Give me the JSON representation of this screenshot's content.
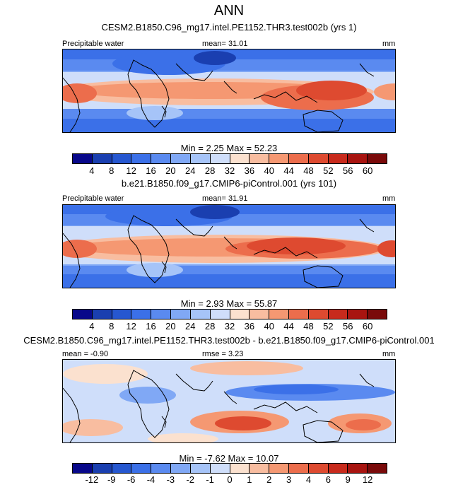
{
  "figure": {
    "title": "ANN"
  },
  "panels": [
    {
      "title": "CESM2.B1850.C96_mg17.intel.PE1152.THR3.test002b (yrs 1)",
      "left_label": "Precipitable water",
      "center_label": "mean=  31.01",
      "right_label": "mm",
      "stats": "Min =   2.25 Max =  52.23",
      "colorbar": {
        "levels": [
          "4",
          "8",
          "12",
          "16",
          "20",
          "24",
          "28",
          "32",
          "36",
          "40",
          "44",
          "48",
          "52",
          "56",
          "60"
        ],
        "colors": [
          "#08088a",
          "#1a3fb0",
          "#2657d0",
          "#3b70e8",
          "#5a8af0",
          "#80a8f5",
          "#a6c4f8",
          "#cfdefa",
          "#fbe1cf",
          "#f8bda0",
          "#f59872",
          "#ec6d4c",
          "#de4a30",
          "#c82a1c",
          "#a81410",
          "#7a0a0a"
        ]
      }
    },
    {
      "title": "b.e21.B1850.f09_g17.CMIP6-piControl.001 (yrs 101)",
      "left_label": "Precipitable water",
      "center_label": "mean=  31.91",
      "right_label": "mm",
      "stats": "Min =   2.93 Max =  55.87",
      "colorbar": {
        "levels": [
          "4",
          "8",
          "12",
          "16",
          "20",
          "24",
          "28",
          "32",
          "36",
          "40",
          "44",
          "48",
          "52",
          "56",
          "60"
        ],
        "colors": [
          "#08088a",
          "#1a3fb0",
          "#2657d0",
          "#3b70e8",
          "#5a8af0",
          "#80a8f5",
          "#a6c4f8",
          "#cfdefa",
          "#fbe1cf",
          "#f8bda0",
          "#f59872",
          "#ec6d4c",
          "#de4a30",
          "#c82a1c",
          "#a81410",
          "#7a0a0a"
        ]
      }
    },
    {
      "title": "CESM2.B1850.C96_mg17.intel.PE1152.THR3.test002b - b.e21.B1850.f09_g17.CMIP6-piControl.001",
      "left_label": "mean =  -0.90",
      "center_label": "rmse =   3.23",
      "right_label": "mm",
      "stats": "Min =  -7.62 Max =  10.07",
      "colorbar": {
        "levels": [
          "-12",
          "-9",
          "-6",
          "-4",
          "-3",
          "-2",
          "-1",
          "0",
          "1",
          "2",
          "3",
          "4",
          "6",
          "9",
          "12"
        ],
        "colors": [
          "#08088a",
          "#1a3fb0",
          "#2657d0",
          "#3b70e8",
          "#5a8af0",
          "#80a8f5",
          "#a6c4f8",
          "#cfdefa",
          "#fbe1cf",
          "#f8bda0",
          "#f59872",
          "#ec6d4c",
          "#de4a30",
          "#c82a1c",
          "#a81410",
          "#7a0a0a"
        ]
      }
    }
  ]
}
